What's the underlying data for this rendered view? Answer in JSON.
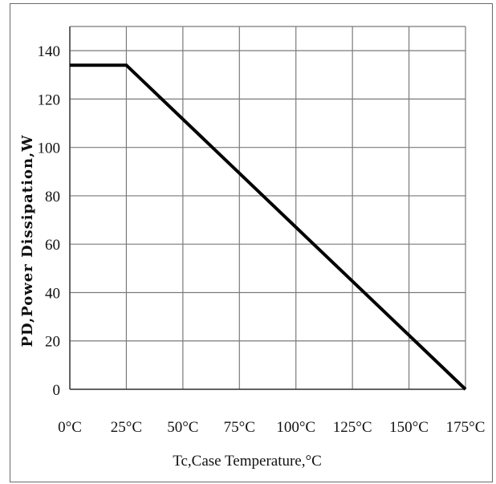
{
  "chart_data": {
    "type": "line",
    "title": "",
    "xlabel": "Tc,Case Temperature,°C",
    "ylabel": "PD,Power Dissipation,W",
    "x_ticks": [
      "0°C",
      "25°C",
      "50°C",
      "75°C",
      "100°C",
      "125°C",
      "150°C",
      "175°C"
    ],
    "y_ticks": [
      "0",
      "20",
      "40",
      "60",
      "80",
      "100",
      "120",
      "140"
    ],
    "xlim": [
      0,
      175
    ],
    "ylim": [
      0,
      150
    ],
    "grid": true,
    "series": [
      {
        "x": [
          0,
          25,
          175
        ],
        "y": [
          134,
          134,
          0
        ]
      }
    ],
    "colors": {
      "line": "#000000",
      "grid": "#7a7a7a",
      "axis": "#3a3a3a"
    }
  }
}
